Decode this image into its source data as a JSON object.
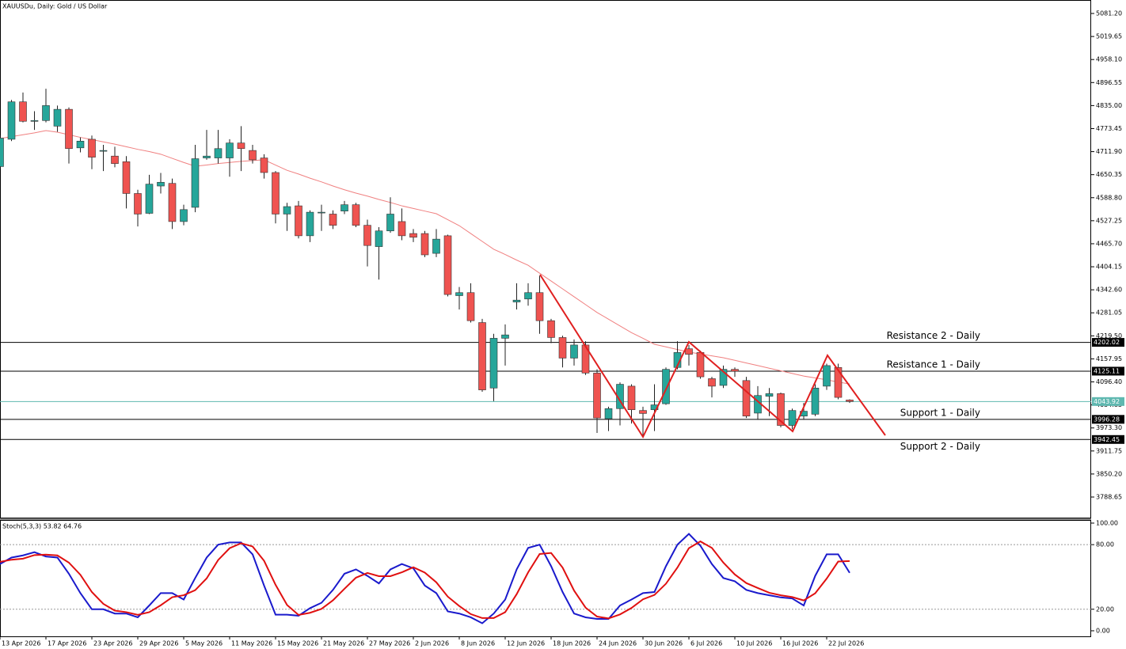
{
  "header": {
    "symbol_text": "XAUUSDu, Daily:  Gold / US Dollar"
  },
  "chart_data": [
    {
      "type": "candlestick",
      "categories": [
        "13 Apr 2026",
        null,
        null,
        null,
        "17 Apr 2026",
        null,
        null,
        null,
        "23 Apr 2026",
        null,
        null,
        null,
        "29 Apr 2026",
        null,
        null,
        null,
        "5 May 2026",
        null,
        null,
        null,
        "11 May 2026",
        null,
        null,
        null,
        "15 May 2026",
        null,
        null,
        null,
        "21 May 2026",
        null,
        null,
        null,
        "27 May 2026",
        null,
        null,
        null,
        "2 Jun 2026",
        null,
        null,
        null,
        "8 Jun 2026",
        null,
        null,
        null,
        "12 Jun 2026",
        null,
        null,
        null,
        "18 Jun 2026",
        null,
        null,
        null,
        "24 Jun 2026",
        null,
        null,
        null,
        "30 Jun 2026",
        null,
        null,
        null,
        "6 Jul 2026",
        null,
        null,
        null,
        "10 Jul 2026",
        null,
        null,
        null,
        "16 Jul 2026",
        null,
        null,
        null,
        "22 Jul 2026",
        null,
        null
      ],
      "open": [
        4672,
        4745,
        4845,
        4793,
        4795,
        4780,
        4825,
        4722,
        4745,
        4715,
        4700,
        4685,
        4600,
        4547,
        4620,
        4627,
        4525,
        4563,
        4695,
        4695,
        4695,
        4735,
        4715,
        4695,
        4656,
        4545,
        4567,
        4487,
        4550,
        4545,
        4553,
        4570,
        4515,
        4458,
        4500,
        4525,
        4493,
        4493,
        4440,
        4487,
        4327,
        4335,
        4255,
        4080,
        4213,
        4310,
        4318,
        4335,
        4260,
        4215,
        4160,
        4195,
        4120,
        3998,
        4025,
        4085,
        4020,
        4022,
        4038,
        4135,
        4185,
        4175,
        4105,
        4087,
        4130,
        4100,
        4013,
        4058,
        4065,
        3980,
        4005,
        4010,
        4085,
        4135,
        4048
      ],
      "high": [
        4755,
        4850,
        4870,
        4820,
        4880,
        4835,
        4830,
        4750,
        4755,
        4730,
        4725,
        4700,
        4610,
        4650,
        4655,
        4640,
        4570,
        4730,
        4770,
        4770,
        4745,
        4780,
        4730,
        4705,
        4660,
        4575,
        4580,
        4555,
        4570,
        4555,
        4580,
        4575,
        4530,
        4510,
        4590,
        4560,
        4505,
        4500,
        4505,
        4490,
        4350,
        4360,
        4265,
        4225,
        4250,
        4360,
        4360,
        4380,
        4265,
        4220,
        4210,
        4205,
        4130,
        4030,
        4095,
        4090,
        4030,
        4090,
        4135,
        4205,
        4195,
        4180,
        4110,
        4140,
        4135,
        4110,
        4085,
        4080,
        4068,
        4025,
        4040,
        4090,
        4145,
        4145,
        4050
      ],
      "low": [
        4665,
        4740,
        4790,
        4770,
        4790,
        4765,
        4680,
        4710,
        4665,
        4660,
        4670,
        4560,
        4512,
        4545,
        4600,
        4505,
        4515,
        4550,
        4690,
        4680,
        4645,
        4660,
        4680,
        4640,
        4520,
        4500,
        4480,
        4470,
        4500,
        4505,
        4545,
        4510,
        4405,
        4370,
        4495,
        4475,
        4470,
        4430,
        4430,
        4325,
        4290,
        4255,
        4070,
        4045,
        4140,
        4290,
        4300,
        4225,
        4200,
        4135,
        4140,
        4115,
        3960,
        3965,
        3980,
        3985,
        3950,
        3965,
        4035,
        4130,
        4140,
        4105,
        4055,
        4080,
        4110,
        4000,
        3995,
        4005,
        3975,
        3970,
        3995,
        4005,
        4075,
        4050,
        4040
      ],
      "close": [
        4748,
        4845,
        4793,
        4795,
        4835,
        4825,
        4720,
        4740,
        4697,
        4715,
        4680,
        4600,
        4545,
        4625,
        4630,
        4525,
        4557,
        4693,
        4700,
        4720,
        4735,
        4720,
        4690,
        4656,
        4545,
        4565,
        4487,
        4550,
        4550,
        4515,
        4570,
        4515,
        4461,
        4500,
        4545,
        4487,
        4483,
        4436,
        4478,
        4330,
        4335,
        4260,
        4075,
        4213,
        4222,
        4315,
        4335,
        4260,
        4215,
        4160,
        4195,
        4120,
        4000,
        4025,
        4090,
        4022,
        4012,
        4035,
        4130,
        4175,
        4170,
        4110,
        4085,
        4130,
        4125,
        4005,
        4060,
        4065,
        3980,
        4020,
        4018,
        4080,
        4140,
        4055,
        4044
      ],
      "up_color": "#26a69a",
      "down_color": "#ef5350",
      "ma": {
        "color": "#f08080",
        "values": [
          4747,
          4752,
          4757,
          4762,
          4768,
          4764,
          4757,
          4750,
          4744,
          4738,
          4732,
          4725,
          4718,
          4712,
          4705,
          4694,
          4683,
          4673,
          4676,
          4680,
          4683,
          4686,
          4688,
          4690,
          4676,
          4662,
          4652,
          4641,
          4631,
          4620,
          4610,
          4601,
          4593,
          4584,
          4576,
          4567,
          4560,
          4553,
          4546,
          4530,
          4514,
          4493,
          4472,
          4451,
          4437,
          4422,
          4408,
          4387,
          4366,
          4345,
          4324,
          4303,
          4282,
          4264,
          4246,
          4228,
          4213,
          4197,
          4190,
          4183,
          4176,
          4171,
          4166,
          4161,
          4154,
          4147,
          4140,
          4133,
          4126,
          4119,
          4112,
          4107,
          4102,
          4096,
          4091
        ]
      },
      "ylim": [
        3731.5,
        5117.2
      ],
      "yticks": [
        {
          "value": 5081.2,
          "label": "5081.20"
        },
        5019.65,
        {
          "value": 4958.1,
          "label": "4958.10"
        },
        4896.55,
        {
          "value": 4835,
          "label": "4835.00"
        },
        4773.45,
        {
          "value": 4711.9,
          "label": "4711.90"
        },
        4650.35,
        {
          "value": 4588.8,
          "label": "4588.80"
        },
        4527.25,
        {
          "value": 4465.7,
          "label": "4465.70"
        },
        4404.15,
        {
          "value": 4342.6,
          "label": "4342.60"
        },
        4281.05,
        {
          "value": 4219.5,
          "label": "4219.50"
        },
        4157.95,
        {
          "value": 4096.4,
          "label": "4096.40"
        },
        4034.85,
        {
          "value": 3973.3,
          "label": "3973.30"
        },
        3911.75,
        {
          "value": 3850.2,
          "label": "3850.20"
        },
        3788.65
      ],
      "levels": [
        {
          "label": "Resistance 2 - Daily",
          "value": 4202.02
        },
        {
          "label": "Resistance 1 - Daily",
          "value": 4125.11
        },
        {
          "label": "Support 1 - Daily",
          "value": 3996.28
        },
        {
          "label": "Support 2 - Daily",
          "value": 3942.45
        }
      ],
      "last_price": 4043.92,
      "last_price_color": "#5fb8b0"
    },
    {
      "type": "line",
      "title": "Stoch(5,3,3) 53.82 64.76",
      "series": [
        {
          "color": "#1a1acc",
          "values": [
            62,
            68,
            70,
            73,
            69,
            68,
            53,
            35,
            20,
            20,
            16,
            16,
            12.5,
            23.5,
            35,
            35,
            29,
            49,
            68,
            80,
            82,
            82,
            71,
            42,
            15,
            15,
            14,
            21,
            26,
            38,
            53,
            57,
            51,
            44,
            57,
            62,
            58,
            42,
            35,
            18,
            16,
            12.5,
            7,
            16,
            29,
            57,
            77,
            80,
            60,
            36,
            16,
            12.5,
            11,
            11,
            23.5,
            29,
            35,
            36,
            60,
            80,
            90,
            79,
            62,
            49,
            46,
            38,
            35,
            33,
            31,
            30,
            23.5,
            51,
            71,
            71,
            53.82
          ]
        },
        {
          "color": "#e01010",
          "values": [
            64,
            66,
            67,
            70.3,
            70.7,
            70,
            63.3,
            52,
            36,
            25,
            18.7,
            17.3,
            14.8,
            17.3,
            23.7,
            31.2,
            33,
            37.7,
            48.7,
            65.7,
            76.7,
            81.3,
            78.3,
            65,
            42.7,
            24,
            14.7,
            16.7,
            20.3,
            28.3,
            39,
            49.3,
            53.7,
            50.7,
            50.7,
            54.3,
            59,
            54,
            45,
            31.7,
            23,
            15.5,
            11.8,
            11.8,
            17.3,
            34,
            54.3,
            71.3,
            72.3,
            58.7,
            37.3,
            21.5,
            13.2,
            11.5,
            15.2,
            21.2,
            29.2,
            33.3,
            43.7,
            58.7,
            76.7,
            83,
            77,
            63.3,
            52.3,
            44.3,
            39.7,
            35.3,
            33,
            31.3,
            28.2,
            34.8,
            48.5,
            64.3,
            64.76
          ]
        }
      ],
      "ylim": [
        -5.9,
        102.9
      ],
      "yticks": [
        {
          "value": 100,
          "label": "100.00"
        },
        {
          "value": 80,
          "label": "80.00"
        },
        {
          "value": 20,
          "label": "20.00"
        },
        {
          "value": 0,
          "label": "0.00"
        }
      ],
      "levels": [
        80,
        20
      ]
    }
  ]
}
